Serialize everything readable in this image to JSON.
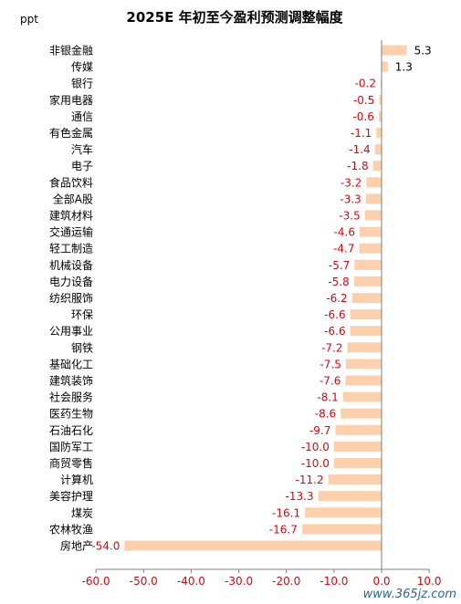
{
  "chart_data": {
    "type": "bar",
    "orientation": "horizontal",
    "title": "2025E 年初至今盈利预测调整幅度",
    "unit_label": "ppt",
    "categories": [
      "非银金融",
      "传媒",
      "银行",
      "家用电器",
      "通信",
      "有色金属",
      "汽车",
      "电子",
      "食品饮料",
      "全部A股",
      "建筑材料",
      "交通运输",
      "轻工制造",
      "机械设备",
      "电力设备",
      "纺织服饰",
      "环保",
      "公用事业",
      "钢铁",
      "基础化工",
      "建筑装饰",
      "社会服务",
      "医药生物",
      "石油石化",
      "国防军工",
      "商贸零售",
      "计算机",
      "美容护理",
      "煤炭",
      "农林牧渔",
      "房地产"
    ],
    "value_labels": [
      "5.3",
      "1.3",
      "-0.2",
      "-0.5",
      "-0.6",
      "-1.1",
      "-1.4",
      "-1.8",
      "-3.2",
      "-3.3",
      "-3.5",
      "-4.6",
      "-4.7",
      "-5.7",
      "-5.8",
      "-6.2",
      "-6.6",
      "-6.6",
      "-7.2",
      "-7.5",
      "-7.6",
      "-8.1",
      "-8.6",
      "-9.7",
      "-10.0",
      "-10.0",
      "-11.2",
      "-13.3",
      "-16.1",
      "-16.7",
      "-54.0"
    ],
    "values": [
      5.3,
      1.3,
      -0.2,
      -0.5,
      -0.6,
      -1.1,
      -1.4,
      -1.8,
      -3.2,
      -3.3,
      -3.5,
      -4.6,
      -4.7,
      -5.7,
      -5.8,
      -6.2,
      -6.6,
      -6.6,
      -7.2,
      -7.5,
      -7.6,
      -8.1,
      -8.6,
      -9.7,
      -10.0,
      -10.0,
      -11.2,
      -13.3,
      -16.1,
      -16.7,
      -54.0
    ],
    "xlim": [
      -60,
      10
    ],
    "xticks": [
      -60,
      -50,
      -40,
      -30,
      -20,
      -10,
      0,
      10
    ],
    "xtick_labels": [
      "-60.0",
      "-50.0",
      "-40.0",
      "-30.0",
      "-20.0",
      "-10.0",
      "0.0",
      "10.0"
    ],
    "grid": false,
    "legend": "none",
    "colors": {
      "bar": "#fcd0ac",
      "positive_label": "#000000",
      "negative_label": "#e8000b",
      "tick_label": "#e8000b",
      "axis": "#808080"
    }
  },
  "watermark": "www.365jz.com"
}
